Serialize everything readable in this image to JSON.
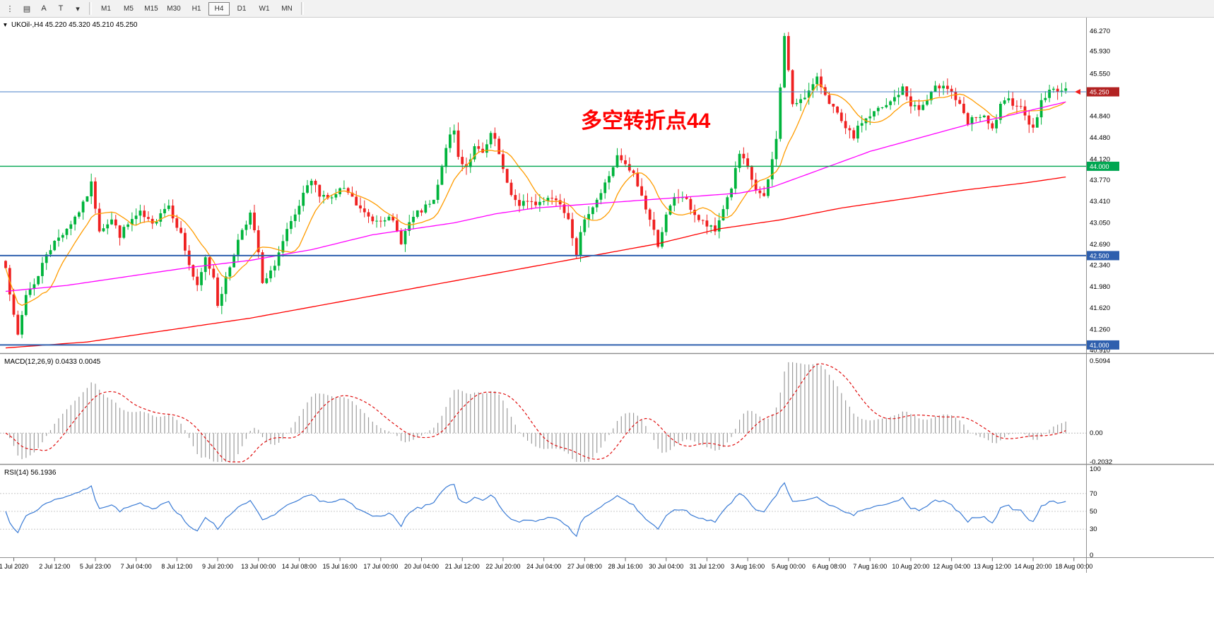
{
  "toolbar": {
    "tools": [
      {
        "name": "toolbar-handle",
        "glyph": "⋮"
      },
      {
        "name": "charts-list",
        "glyph": "▤"
      },
      {
        "name": "font-tool",
        "glyph": "A"
      },
      {
        "name": "text-tool",
        "glyph": "T"
      },
      {
        "name": "arrows-dropdown",
        "glyph": "▾"
      }
    ],
    "timeframes": [
      "M1",
      "M5",
      "M15",
      "M30",
      "H1",
      "H4",
      "D1",
      "W1",
      "MN"
    ],
    "active_timeframe": "H4"
  },
  "chart": {
    "collapse_icon": "▾",
    "symbol_line": "UKOil-,H4 45.220 45.320 45.210 45.250",
    "annotation": {
      "text": "多空转折点44"
    },
    "price_axis_ticks": [
      "46.270",
      "45.930",
      "45.550",
      "44.840",
      "44.480",
      "44.120",
      "43.770",
      "43.410",
      "43.050",
      "42.690",
      "42.340",
      "41.980",
      "41.620",
      "41.260",
      "40.910"
    ],
    "price_badges": [
      {
        "text": "45.250",
        "price": 45.25,
        "bg_key": "badge_current_bg",
        "line_key": "hline_current",
        "lw": 1
      },
      {
        "text": "44.000",
        "price": 44.0,
        "bg_key": "hline_green",
        "line_key": "hline_green",
        "lw": 1.4
      },
      {
        "text": "42.500",
        "price": 42.5,
        "bg_key": "hline_blue",
        "line_key": "hline_blue",
        "lw": 2
      },
      {
        "text": "41.000",
        "price": 41.0,
        "bg_key": "hline_blue",
        "line_key": "hline_blue",
        "lw": 2
      }
    ]
  },
  "macd_panel": {
    "label": "MACD(12,26,9) 0.0433 0.0045",
    "axis": [
      "0.5094",
      "0.00",
      "-0.2032"
    ]
  },
  "rsi_panel": {
    "label": "RSI(14) 56.1936",
    "axis": [
      "100",
      "70",
      "50",
      "30",
      "0"
    ]
  },
  "time_axis": [
    "1 Jul 2020",
    "2 Jul 12:00",
    "5 Jul 23:00",
    "7 Jul 04:00",
    "8 Jul 12:00",
    "9 Jul 20:00",
    "13 Jul 00:00",
    "14 Jul 08:00",
    "15 Jul 16:00",
    "17 Jul 00:00",
    "20 Jul 04:00",
    "21 Jul 12:00",
    "22 Jul 20:00",
    "24 Jul 04:00",
    "27 Jul 08:00",
    "28 Jul 16:00",
    "30 Jul 04:00",
    "31 Jul 12:00",
    "3 Aug 16:00",
    "5 Aug 00:00",
    "6 Aug 08:00",
    "7 Aug 16:00",
    "10 Aug 20:00",
    "12 Aug 04:00",
    "13 Aug 12:00",
    "14 Aug 20:00",
    "18 Aug 00:00"
  ],
  "colors": {
    "candle_up": "#00b43c",
    "candle_down": "#ef2020",
    "ma_fast": "#ff9c00",
    "ma_mid": "#ff00ff",
    "ma_slow": "#ff0000",
    "macd_hist": "#9c9c9c",
    "macd_signal": "#e01010",
    "rsi_line": "#3a7bd5",
    "hline_current": "#4a82c8",
    "hline_green": "#00a651",
    "hline_blue": "#2e5fae",
    "badge_current_bg": "#b22222",
    "annotation": "#ff0000"
  },
  "chart_data": {
    "type": "candlestick",
    "symbol": "UKOil-",
    "timeframe": "H4",
    "last_ohlc": [
      45.22,
      45.32,
      45.21,
      45.25
    ],
    "bars": 261,
    "price_range": [
      40.91,
      46.27
    ],
    "horizontal_lines": [
      45.25,
      44.0,
      42.5,
      41.0
    ],
    "close_waypoints": [
      [
        0,
        42.35
      ],
      [
        2,
        41.45
      ],
      [
        3,
        41.15
      ],
      [
        5,
        41.85
      ],
      [
        8,
        42.15
      ],
      [
        10,
        42.55
      ],
      [
        13,
        42.8
      ],
      [
        16,
        43.05
      ],
      [
        19,
        43.35
      ],
      [
        21,
        43.7
      ],
      [
        23,
        42.95
      ],
      [
        26,
        43.1
      ],
      [
        28,
        42.85
      ],
      [
        31,
        43.1
      ],
      [
        33,
        43.2
      ],
      [
        36,
        43.0
      ],
      [
        38,
        43.25
      ],
      [
        40,
        43.35
      ],
      [
        43,
        42.85
      ],
      [
        45,
        42.35
      ],
      [
        47,
        41.95
      ],
      [
        49,
        42.45
      ],
      [
        51,
        42.15
      ],
      [
        52,
        41.7
      ],
      [
        54,
        42.1
      ],
      [
        56,
        42.55
      ],
      [
        58,
        42.95
      ],
      [
        60,
        43.2
      ],
      [
        62,
        42.55
      ],
      [
        63,
        42.0
      ],
      [
        65,
        42.2
      ],
      [
        67,
        42.55
      ],
      [
        69,
        42.9
      ],
      [
        71,
        43.15
      ],
      [
        73,
        43.5
      ],
      [
        75,
        43.75
      ],
      [
        77,
        43.55
      ],
      [
        80,
        43.45
      ],
      [
        82,
        43.6
      ],
      [
        84,
        43.55
      ],
      [
        86,
        43.35
      ],
      [
        88,
        43.2
      ],
      [
        90,
        43.1
      ],
      [
        93,
        43.15
      ],
      [
        95,
        43.05
      ],
      [
        97,
        42.75
      ],
      [
        99,
        43.05
      ],
      [
        101,
        43.2
      ],
      [
        103,
        43.3
      ],
      [
        105,
        43.4
      ],
      [
        107,
        43.95
      ],
      [
        108,
        44.35
      ],
      [
        110,
        44.6
      ],
      [
        111,
        44.15
      ],
      [
        113,
        44.0
      ],
      [
        115,
        44.3
      ],
      [
        117,
        44.2
      ],
      [
        119,
        44.5
      ],
      [
        120,
        44.45
      ],
      [
        122,
        43.9
      ],
      [
        124,
        43.55
      ],
      [
        126,
        43.3
      ],
      [
        128,
        43.45
      ],
      [
        130,
        43.35
      ],
      [
        133,
        43.5
      ],
      [
        136,
        43.4
      ],
      [
        138,
        43.15
      ],
      [
        140,
        42.55
      ],
      [
        141,
        42.85
      ],
      [
        143,
        43.25
      ],
      [
        146,
        43.55
      ],
      [
        148,
        43.85
      ],
      [
        150,
        44.15
      ],
      [
        152,
        44.0
      ],
      [
        154,
        43.85
      ],
      [
        156,
        43.5
      ],
      [
        158,
        43.1
      ],
      [
        160,
        42.7
      ],
      [
        162,
        43.15
      ],
      [
        164,
        43.45
      ],
      [
        166,
        43.5
      ],
      [
        168,
        43.3
      ],
      [
        170,
        43.1
      ],
      [
        172,
        43.0
      ],
      [
        174,
        42.9
      ],
      [
        176,
        43.3
      ],
      [
        178,
        43.65
      ],
      [
        180,
        44.2
      ],
      [
        182,
        43.95
      ],
      [
        184,
        43.6
      ],
      [
        186,
        43.45
      ],
      [
        188,
        44.1
      ],
      [
        189,
        44.5
      ],
      [
        190,
        45.3
      ],
      [
        191,
        46.2
      ],
      [
        192,
        45.6
      ],
      [
        193,
        45.0
      ],
      [
        195,
        45.15
      ],
      [
        197,
        45.25
      ],
      [
        199,
        45.45
      ],
      [
        200,
        45.35
      ],
      [
        202,
        45.1
      ],
      [
        204,
        44.85
      ],
      [
        206,
        44.6
      ],
      [
        208,
        44.5
      ],
      [
        210,
        44.75
      ],
      [
        212,
        44.85
      ],
      [
        214,
        44.95
      ],
      [
        216,
        45.0
      ],
      [
        218,
        45.15
      ],
      [
        220,
        45.3
      ],
      [
        222,
        45.05
      ],
      [
        224,
        44.95
      ],
      [
        226,
        45.1
      ],
      [
        228,
        45.3
      ],
      [
        230,
        45.4
      ],
      [
        232,
        45.25
      ],
      [
        234,
        45.0
      ],
      [
        236,
        44.7
      ],
      [
        238,
        44.85
      ],
      [
        240,
        44.8
      ],
      [
        242,
        44.6
      ],
      [
        244,
        45.0
      ],
      [
        246,
        45.1
      ],
      [
        248,
        45.05
      ],
      [
        250,
        44.9
      ],
      [
        252,
        44.6
      ],
      [
        254,
        45.1
      ],
      [
        256,
        45.25
      ],
      [
        258,
        45.3
      ],
      [
        260,
        45.25
      ]
    ],
    "moving_averages": [
      {
        "name": "fast",
        "color_key": "ma_fast",
        "method": "sma",
        "period": 10
      },
      {
        "name": "mid",
        "color_key": "ma_mid",
        "waypoints": [
          [
            0,
            41.9
          ],
          [
            15,
            42.0
          ],
          [
            30,
            42.15
          ],
          [
            45,
            42.3
          ],
          [
            60,
            42.42
          ],
          [
            75,
            42.6
          ],
          [
            90,
            42.85
          ],
          [
            100,
            42.95
          ],
          [
            110,
            43.05
          ],
          [
            120,
            43.2
          ],
          [
            130,
            43.3
          ],
          [
            140,
            43.35
          ],
          [
            150,
            43.4
          ],
          [
            160,
            43.45
          ],
          [
            170,
            43.5
          ],
          [
            180,
            43.55
          ],
          [
            188,
            43.65
          ],
          [
            196,
            43.85
          ],
          [
            204,
            44.05
          ],
          [
            212,
            44.25
          ],
          [
            220,
            44.4
          ],
          [
            228,
            44.55
          ],
          [
            236,
            44.7
          ],
          [
            244,
            44.82
          ],
          [
            252,
            44.95
          ],
          [
            260,
            45.08
          ]
        ]
      },
      {
        "name": "slow",
        "color_key": "ma_slow",
        "waypoints": [
          [
            0,
            40.95
          ],
          [
            20,
            41.05
          ],
          [
            40,
            41.25
          ],
          [
            60,
            41.45
          ],
          [
            80,
            41.7
          ],
          [
            100,
            41.95
          ],
          [
            120,
            42.2
          ],
          [
            140,
            42.45
          ],
          [
            160,
            42.7
          ],
          [
            175,
            42.95
          ],
          [
            190,
            43.1
          ],
          [
            205,
            43.3
          ],
          [
            220,
            43.45
          ],
          [
            235,
            43.6
          ],
          [
            250,
            43.72
          ],
          [
            260,
            43.82
          ]
        ]
      }
    ],
    "macd": {
      "fast": 12,
      "slow": 26,
      "signal": 9,
      "range": [
        -0.2032,
        0.5094
      ],
      "current": [
        0.0433,
        0.0045
      ]
    },
    "rsi": {
      "period": 14,
      "range": [
        0,
        100
      ],
      "levels": [
        70,
        50,
        30
      ],
      "current": 56.1936
    }
  }
}
